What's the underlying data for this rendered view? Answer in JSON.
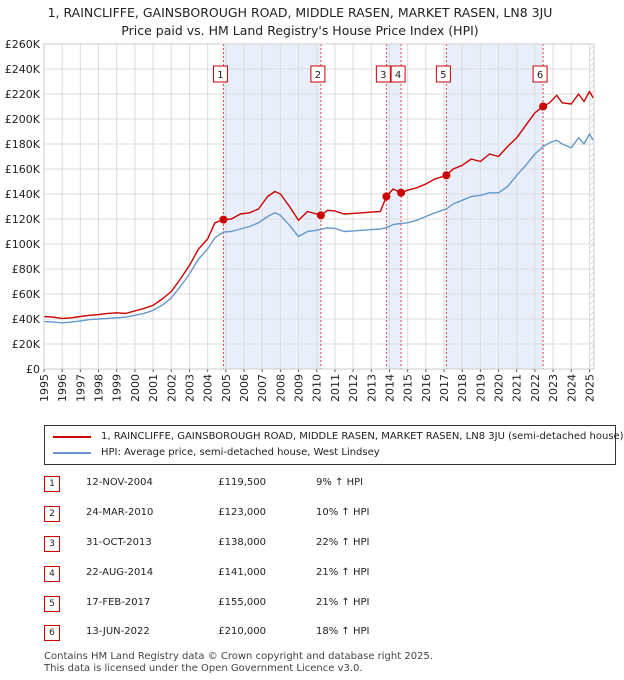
{
  "title": {
    "line1": "1, RAINCLIFFE, GAINSBOROUGH ROAD, MIDDLE RASEN, MARKET RASEN, LN8 3JU",
    "line2": "Price paid vs. HM Land Registry's House Price Index (HPI)"
  },
  "chart_data": {
    "type": "line",
    "x_range": [
      1995,
      2025.25
    ],
    "y_range": [
      0,
      260000
    ],
    "y_ticks": [
      {
        "value": 0,
        "label": "£0"
      },
      {
        "value": 20000,
        "label": "£20K"
      },
      {
        "value": 40000,
        "label": "£40K"
      },
      {
        "value": 60000,
        "label": "£60K"
      },
      {
        "value": 80000,
        "label": "£80K"
      },
      {
        "value": 100000,
        "label": "£100K"
      },
      {
        "value": 120000,
        "label": "£120K"
      },
      {
        "value": 140000,
        "label": "£140K"
      },
      {
        "value": 160000,
        "label": "£160K"
      },
      {
        "value": 180000,
        "label": "£180K"
      },
      {
        "value": 200000,
        "label": "£200K"
      },
      {
        "value": 220000,
        "label": "£220K"
      },
      {
        "value": 240000,
        "label": "£240K"
      },
      {
        "value": 260000,
        "label": "£260K"
      }
    ],
    "x_ticks": [
      "1995",
      "1996",
      "1997",
      "1998",
      "1999",
      "2000",
      "2001",
      "2002",
      "2003",
      "2004",
      "2005",
      "2006",
      "2007",
      "2008",
      "2009",
      "2010",
      "2011",
      "2012",
      "2013",
      "2014",
      "2015",
      "2016",
      "2017",
      "2018",
      "2019",
      "2020",
      "2021",
      "2022",
      "2023",
      "2024",
      "2025"
    ],
    "grid": true,
    "series": [
      {
        "name": "1, RAINCLIFFE, GAINSBOROUGH ROAD, MIDDLE RASEN, MARKET RASEN, LN8 3JU (semi-detached house)",
        "color": "#cc0000",
        "points": [
          [
            1995.0,
            42000
          ],
          [
            1995.5,
            41500
          ],
          [
            1996.0,
            40500
          ],
          [
            1996.5,
            41000
          ],
          [
            1997.0,
            42000
          ],
          [
            1997.5,
            43000
          ],
          [
            1998.0,
            43500
          ],
          [
            1998.5,
            44500
          ],
          [
            1999.0,
            45000
          ],
          [
            1999.5,
            44500
          ],
          [
            2000.0,
            46500
          ],
          [
            2000.5,
            48500
          ],
          [
            2001.0,
            51000
          ],
          [
            2001.5,
            56000
          ],
          [
            2002.0,
            62000
          ],
          [
            2002.5,
            72000
          ],
          [
            2003.0,
            83000
          ],
          [
            2003.5,
            96000
          ],
          [
            2004.0,
            104000
          ],
          [
            2004.4,
            117000
          ],
          [
            2004.87,
            119500
          ],
          [
            2005.3,
            120000
          ],
          [
            2005.8,
            124000
          ],
          [
            2006.3,
            125000
          ],
          [
            2006.8,
            128000
          ],
          [
            2007.3,
            138000
          ],
          [
            2007.7,
            142000
          ],
          [
            2008.0,
            140000
          ],
          [
            2008.5,
            130000
          ],
          [
            2009.0,
            119000
          ],
          [
            2009.5,
            126000
          ],
          [
            2010.0,
            124000
          ],
          [
            2010.23,
            123000
          ],
          [
            2010.6,
            127000
          ],
          [
            2011.0,
            126500
          ],
          [
            2011.5,
            124000
          ],
          [
            2012.0,
            124500
          ],
          [
            2012.5,
            125000
          ],
          [
            2013.0,
            125500
          ],
          [
            2013.5,
            126000
          ],
          [
            2013.83,
            138000
          ],
          [
            2014.2,
            144000
          ],
          [
            2014.64,
            141000
          ],
          [
            2015.0,
            143000
          ],
          [
            2015.5,
            145000
          ],
          [
            2016.0,
            148000
          ],
          [
            2016.5,
            152000
          ],
          [
            2017.13,
            155000
          ],
          [
            2017.5,
            160000
          ],
          [
            2018.0,
            163000
          ],
          [
            2018.5,
            168000
          ],
          [
            2019.0,
            166000
          ],
          [
            2019.5,
            172000
          ],
          [
            2020.0,
            170000
          ],
          [
            2020.5,
            178000
          ],
          [
            2021.0,
            185000
          ],
          [
            2021.5,
            195000
          ],
          [
            2022.0,
            205000
          ],
          [
            2022.45,
            210000
          ],
          [
            2022.8,
            213000
          ],
          [
            2023.2,
            219000
          ],
          [
            2023.5,
            213000
          ],
          [
            2024.0,
            212000
          ],
          [
            2024.4,
            220000
          ],
          [
            2024.7,
            214000
          ],
          [
            2025.0,
            222000
          ],
          [
            2025.2,
            217000
          ]
        ]
      },
      {
        "name": "HPI: Average price, semi-detached house, West Lindsey",
        "color": "#6699cc",
        "points": [
          [
            1995.0,
            38000
          ],
          [
            1995.5,
            37500
          ],
          [
            1996.0,
            37000
          ],
          [
            1996.5,
            37500
          ],
          [
            1997.0,
            38500
          ],
          [
            1997.5,
            39500
          ],
          [
            1998.0,
            40000
          ],
          [
            1998.5,
            40500
          ],
          [
            1999.0,
            41000
          ],
          [
            1999.5,
            41500
          ],
          [
            2000.0,
            43000
          ],
          [
            2000.5,
            44500
          ],
          [
            2001.0,
            47000
          ],
          [
            2001.5,
            51000
          ],
          [
            2002.0,
            57000
          ],
          [
            2002.5,
            66000
          ],
          [
            2003.0,
            76000
          ],
          [
            2003.5,
            88000
          ],
          [
            2004.0,
            96000
          ],
          [
            2004.4,
            105000
          ],
          [
            2004.87,
            109500
          ],
          [
            2005.3,
            110000
          ],
          [
            2005.8,
            112000
          ],
          [
            2006.3,
            114000
          ],
          [
            2006.8,
            117000
          ],
          [
            2007.3,
            122000
          ],
          [
            2007.7,
            125000
          ],
          [
            2008.0,
            123000
          ],
          [
            2008.5,
            115000
          ],
          [
            2009.0,
            106000
          ],
          [
            2009.5,
            110000
          ],
          [
            2010.0,
            111000
          ],
          [
            2010.23,
            111800
          ],
          [
            2010.6,
            113000
          ],
          [
            2011.0,
            112500
          ],
          [
            2011.5,
            110000
          ],
          [
            2012.0,
            110500
          ],
          [
            2012.5,
            111000
          ],
          [
            2013.0,
            111500
          ],
          [
            2013.5,
            112000
          ],
          [
            2013.83,
            113100
          ],
          [
            2014.2,
            115500
          ],
          [
            2014.64,
            116500
          ],
          [
            2015.0,
            117000
          ],
          [
            2015.5,
            119000
          ],
          [
            2016.0,
            122000
          ],
          [
            2016.5,
            125000
          ],
          [
            2017.13,
            128000
          ],
          [
            2017.5,
            132000
          ],
          [
            2018.0,
            135000
          ],
          [
            2018.5,
            138000
          ],
          [
            2019.0,
            139000
          ],
          [
            2019.5,
            141000
          ],
          [
            2020.0,
            141000
          ],
          [
            2020.5,
            146000
          ],
          [
            2021.0,
            155000
          ],
          [
            2021.5,
            163000
          ],
          [
            2022.0,
            172000
          ],
          [
            2022.45,
            178000
          ],
          [
            2022.8,
            181000
          ],
          [
            2023.2,
            183000
          ],
          [
            2023.5,
            180000
          ],
          [
            2024.0,
            177000
          ],
          [
            2024.4,
            185000
          ],
          [
            2024.7,
            180000
          ],
          [
            2025.0,
            188000
          ],
          [
            2025.2,
            183000
          ]
        ]
      }
    ],
    "sale_markers": [
      {
        "n": "1",
        "x": 2004.87,
        "price": 119500
      },
      {
        "n": "2",
        "x": 2010.23,
        "price": 123000
      },
      {
        "n": "3",
        "x": 2013.83,
        "price": 138000
      },
      {
        "n": "4",
        "x": 2014.64,
        "price": 141000
      },
      {
        "n": "5",
        "x": 2017.13,
        "price": 155000
      },
      {
        "n": "6",
        "x": 2022.45,
        "price": 210000
      }
    ],
    "shaded_spans": [
      [
        2004.87,
        2010.23
      ],
      [
        2013.83,
        2014.64
      ],
      [
        2017.13,
        2022.45
      ]
    ],
    "hatched_from": 2025.0
  },
  "legend": {
    "property_label": "1, RAINCLIFFE, GAINSBOROUGH ROAD, MIDDLE RASEN, MARKET RASEN, LN8 3JU (semi-detached house)",
    "hpi_label": "HPI: Average price, semi-detached house, West Lindsey",
    "property_color": "#cc0000",
    "hpi_color": "#6699cc"
  },
  "transactions": [
    {
      "n": "1",
      "date": "12-NOV-2004",
      "price": "£119,500",
      "hpi": "9% ↑ HPI"
    },
    {
      "n": "2",
      "date": "24-MAR-2010",
      "price": "£123,000",
      "hpi": "10% ↑ HPI"
    },
    {
      "n": "3",
      "date": "31-OCT-2013",
      "price": "£138,000",
      "hpi": "22% ↑ HPI"
    },
    {
      "n": "4",
      "date": "22-AUG-2014",
      "price": "£141,000",
      "hpi": "21% ↑ HPI"
    },
    {
      "n": "5",
      "date": "17-FEB-2017",
      "price": "£155,000",
      "hpi": "21% ↑ HPI"
    },
    {
      "n": "6",
      "date": "13-JUN-2022",
      "price": "£210,000",
      "hpi": "18% ↑ HPI"
    }
  ],
  "footer": {
    "line1": "Contains HM Land Registry data © Crown copyright and database right 2025.",
    "line2": "This data is licensed under the Open Government Licence v3.0."
  }
}
